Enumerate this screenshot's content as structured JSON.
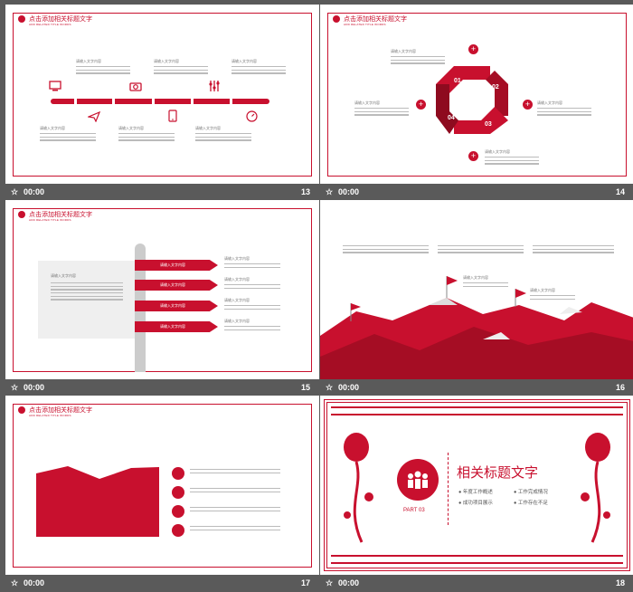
{
  "colors": {
    "accent": "#c8102e",
    "page_bg": "#5a5a5a"
  },
  "slide_header": {
    "title": "点击添加相关标题文字",
    "subtitle": "ADD RELATED TITLE WORDS"
  },
  "placeholder": "请输入文字内容",
  "slides": [
    {
      "num": "13",
      "time": "00:00"
    },
    {
      "num": "14",
      "time": "00:00",
      "steps": [
        "01",
        "02",
        "03",
        "04"
      ]
    },
    {
      "num": "15",
      "time": "00:00",
      "arrows": [
        "请输入文字内容",
        "请输入文字内容",
        "请输入文字内容",
        "请输入文字内容"
      ]
    },
    {
      "num": "16",
      "time": "00:00"
    },
    {
      "num": "17",
      "time": "00:00"
    },
    {
      "num": "18",
      "time": "00:00",
      "title": "相关标题文字",
      "part": "PART 03",
      "items": [
        "年度工作概述",
        "工作完成情况",
        "成功项目展示",
        "工作存在不足"
      ]
    }
  ]
}
